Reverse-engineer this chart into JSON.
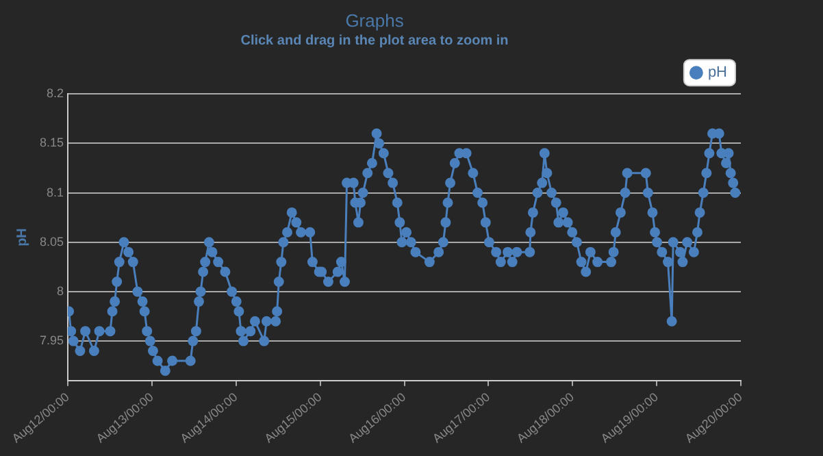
{
  "chart_data": {
    "type": "line",
    "title": "Graphs",
    "subtitle": "Click and drag in the plot area to zoom in",
    "ylabel": "pH",
    "legend": "top right",
    "marker": "circle",
    "grid": "y",
    "xlim": [
      "--08-12T00:00",
      "--08-20T00:00"
    ],
    "xticks": [
      {
        "value": "--08-12T00:00",
        "label": "Aug12/00:00"
      },
      {
        "value": "--08-13T00:00",
        "label": "Aug13/00:00"
      },
      {
        "value": "--08-14T00:00",
        "label": "Aug14/00:00"
      },
      {
        "value": "--08-15T00:00",
        "label": "Aug15/00:00"
      },
      {
        "value": "--08-16T00:00",
        "label": "Aug16/00:00"
      },
      {
        "value": "--08-17T00:00",
        "label": "Aug17/00:00"
      },
      {
        "value": "--08-18T00:00",
        "label": "Aug18/00:00"
      },
      {
        "value": "--08-19T00:00",
        "label": "Aug19/00:00"
      },
      {
        "value": "--08-20T00:00",
        "label": "Aug20/00:00"
      }
    ],
    "ylim": [
      7.91,
      8.2
    ],
    "yticks": [
      7.95,
      8,
      8.05,
      8.1,
      8.15,
      8.2
    ],
    "series": [
      {
        "name": "pH",
        "color": "#4a7fbd",
        "x": [
          "--08-12T00:18",
          "--08-12T00:54",
          "--08-12T01:36",
          "--08-12T03:30",
          "--08-12T05:00",
          "--08-12T07:30",
          "--08-12T09:00",
          "--08-12T12:06",
          "--08-12T12:42",
          "--08-12T13:24",
          "--08-12T14:00",
          "--08-12T14:42",
          "--08-12T16:00",
          "--08-12T17:18",
          "--08-12T18:36",
          "--08-12T19:54",
          "--08-12T21:18",
          "--08-12T21:54",
          "--08-12T22:36",
          "--08-12T23:30",
          "--08-13T00:18",
          "--08-13T01:36",
          "--08-13T03:48",
          "--08-13T05:48",
          "--08-13T11:00",
          "--08-13T11:42",
          "--08-13T12:36",
          "--08-13T13:24",
          "--08-13T13:54",
          "--08-13T14:36",
          "--08-13T15:12",
          "--08-13T16:18",
          "--08-13T17:12",
          "--08-13T18:54",
          "--08-13T20:54",
          "--08-13T22:48",
          "--08-14T00:06",
          "--08-14T00:48",
          "--08-14T01:24",
          "--08-14T02:06",
          "--08-14T04:06",
          "--08-14T05:24",
          "--08-14T08:00",
          "--08-14T08:42",
          "--08-14T11:18",
          "--08-14T11:42",
          "--08-14T12:12",
          "--08-14T12:54",
          "--08-14T13:30",
          "--08-14T14:36",
          "--08-14T15:54",
          "--08-14T17:12",
          "--08-14T18:30",
          "--08-14T21:06",
          "--08-14T21:48",
          "--08-14T23:42",
          "--08-15T00:24",
          "--08-15T02:18",
          "--08-15T05:00",
          "--08-15T06:00",
          "--08-15T07:00",
          "--08-15T07:36",
          "--08-15T09:30",
          "--08-15T10:00",
          "--08-15T10:54",
          "--08-15T11:30",
          "--08-15T12:12",
          "--08-15T13:30",
          "--08-15T14:48",
          "--08-15T16:06",
          "--08-15T16:48",
          "--08-15T18:06",
          "--08-15T19:24",
          "--08-15T20:42",
          "--08-15T22:00",
          "--08-15T22:42",
          "--08-15T23:18",
          "--08-16T00:36",
          "--08-16T01:54",
          "--08-16T03:12",
          "--08-16T07:12",
          "--08-16T09:48",
          "--08-16T11:06",
          "--08-16T11:48",
          "--08-16T12:24",
          "--08-16T13:06",
          "--08-16T14:24",
          "--08-16T15:42",
          "--08-16T17:42",
          "--08-16T19:36",
          "--08-16T20:54",
          "--08-16T22:18",
          "--08-16T23:12",
          "--08-17T00:12",
          "--08-17T02:12",
          "--08-17T03:30",
          "--08-17T05:30",
          "--08-17T06:48",
          "--08-17T08:06",
          "--08-17T11:48",
          "--08-17T12:00",
          "--08-17T12:42",
          "--08-17T14:00",
          "--08-17T15:18",
          "--08-17T16:00",
          "--08-17T16:42",
          "--08-17T18:00",
          "--08-17T19:18",
          "--08-17T20:00",
          "--08-17T21:18",
          "--08-17T22:36",
          "--08-17T23:54",
          "--08-18T01:12",
          "--08-18T02:30",
          "--08-18T03:48",
          "--08-18T05:06",
          "--08-18T07:06",
          "--08-18T11:00",
          "--08-18T11:42",
          "--08-18T12:18",
          "--08-18T13:42",
          "--08-18T15:00",
          "--08-18T15:36",
          "--08-18T20:54",
          "--08-18T21:30",
          "--08-18T22:48",
          "--08-18T23:30",
          "--08-19T00:06",
          "--08-19T01:30",
          "--08-19T03:12",
          "--08-19T04:18",
          "--08-19T04:42",
          "--08-19T06:42",
          "--08-19T07:24",
          "--08-19T08:42",
          "--08-19T10:36",
          "--08-19T11:36",
          "--08-19T12:18",
          "--08-19T13:18",
          "--08-19T14:12",
          "--08-19T15:00",
          "--08-19T15:54",
          "--08-19T17:48",
          "--08-19T18:30",
          "--08-19T19:48",
          "--08-19T20:30",
          "--08-19T21:06",
          "--08-19T21:48",
          "--08-19T22:24"
        ],
        "values": [
          7.98,
          7.96,
          7.95,
          7.94,
          7.96,
          7.94,
          7.96,
          7.96,
          7.98,
          7.99,
          8.01,
          8.03,
          8.05,
          8.04,
          8.03,
          8,
          7.99,
          7.98,
          7.96,
          7.95,
          7.94,
          7.93,
          7.92,
          7.93,
          7.93,
          7.95,
          7.96,
          7.99,
          8,
          8.02,
          8.03,
          8.05,
          8.04,
          8.03,
          8.02,
          8,
          7.99,
          7.98,
          7.96,
          7.95,
          7.96,
          7.97,
          7.95,
          7.97,
          7.97,
          7.98,
          8.01,
          8.03,
          8.05,
          8.06,
          8.08,
          8.07,
          8.06,
          8.06,
          8.03,
          8.02,
          8.02,
          8.01,
          8.02,
          8.03,
          8.01,
          8.11,
          8.11,
          8.09,
          8.07,
          8.09,
          8.1,
          8.12,
          8.13,
          8.16,
          8.15,
          8.14,
          8.12,
          8.11,
          8.09,
          8.07,
          8.05,
          8.06,
          8.05,
          8.04,
          8.03,
          8.04,
          8.05,
          8.07,
          8.09,
          8.11,
          8.13,
          8.14,
          8.14,
          8.12,
          8.1,
          8.09,
          8.07,
          8.05,
          8.04,
          8.03,
          8.04,
          8.03,
          8.04,
          8.04,
          8.06,
          8.08,
          8.1,
          8.11,
          8.14,
          8.12,
          8.1,
          8.09,
          8.07,
          8.08,
          8.07,
          8.06,
          8.05,
          8.03,
          8.02,
          8.04,
          8.03,
          8.03,
          8.04,
          8.06,
          8.08,
          8.1,
          8.12,
          8.12,
          8.1,
          8.08,
          8.06,
          8.05,
          8.04,
          8.03,
          7.97,
          8.05,
          8.04,
          8.03,
          8.05,
          8.04,
          8.06,
          8.08,
          8.1,
          8.12,
          8.14,
          8.16,
          8.16,
          8.14,
          8.13,
          8.14,
          8.12,
          8.11,
          8.1
        ]
      }
    ]
  }
}
